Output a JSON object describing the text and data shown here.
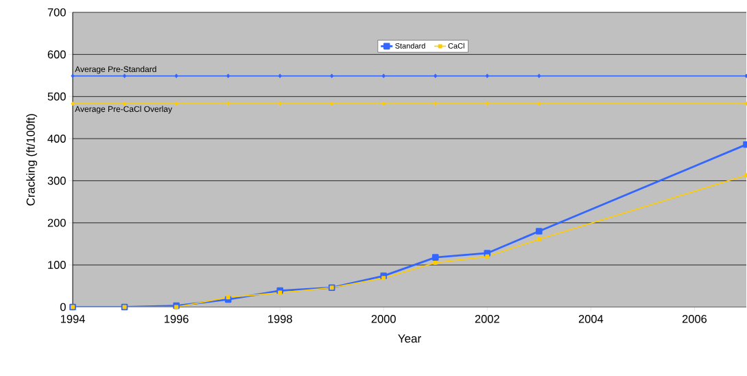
{
  "chart_data": {
    "type": "line",
    "xlabel": "Year",
    "ylabel": "Cracking (ft/100ft)",
    "xlim": [
      1994,
      2007
    ],
    "xticks": [
      1994,
      1996,
      1998,
      2000,
      2002,
      2004,
      2006
    ],
    "ylim": [
      0,
      700
    ],
    "yticks": [
      0,
      100,
      200,
      300,
      400,
      500,
      600,
      700
    ],
    "grid": "y",
    "legend": "top",
    "line_style": "solid",
    "series": [
      {
        "name": "Standard",
        "color": "#3366ff",
        "marker": "square",
        "x": [
          1994,
          1995,
          1996,
          1997,
          1998,
          1999,
          2000,
          2001,
          2002,
          2003,
          2007
        ],
        "values": [
          0,
          0,
          3,
          18,
          39,
          46,
          74,
          118,
          128,
          180,
          386
        ]
      },
      {
        "name": "CaCl",
        "color": "#ffcc00",
        "marker": "square",
        "x": [
          1994,
          1995,
          1996,
          1997,
          1998,
          1999,
          2000,
          2001,
          2002,
          2003,
          2007
        ],
        "values": [
          0,
          0,
          0,
          23,
          34,
          46,
          69,
          105,
          120,
          161,
          313
        ]
      },
      {
        "name": "Average Pre-Standard",
        "color": "#3366ff",
        "marker": "diamond",
        "x": [
          1994,
          1995,
          1996,
          1997,
          1998,
          1999,
          2000,
          2001,
          2002,
          2003,
          2007
        ],
        "values": [
          549,
          549,
          549,
          549,
          549,
          549,
          549,
          549,
          549,
          549,
          549
        ]
      },
      {
        "name": "Average Pre-CaCl Overlay",
        "color": "#ffcc00",
        "marker": "diamond",
        "x": [
          1994,
          1995,
          1996,
          1997,
          1998,
          1999,
          2000,
          2001,
          2002,
          2003,
          2007
        ],
        "values": [
          483,
          483,
          483,
          483,
          483,
          483,
          483,
          483,
          483,
          483,
          483
        ]
      }
    ]
  }
}
